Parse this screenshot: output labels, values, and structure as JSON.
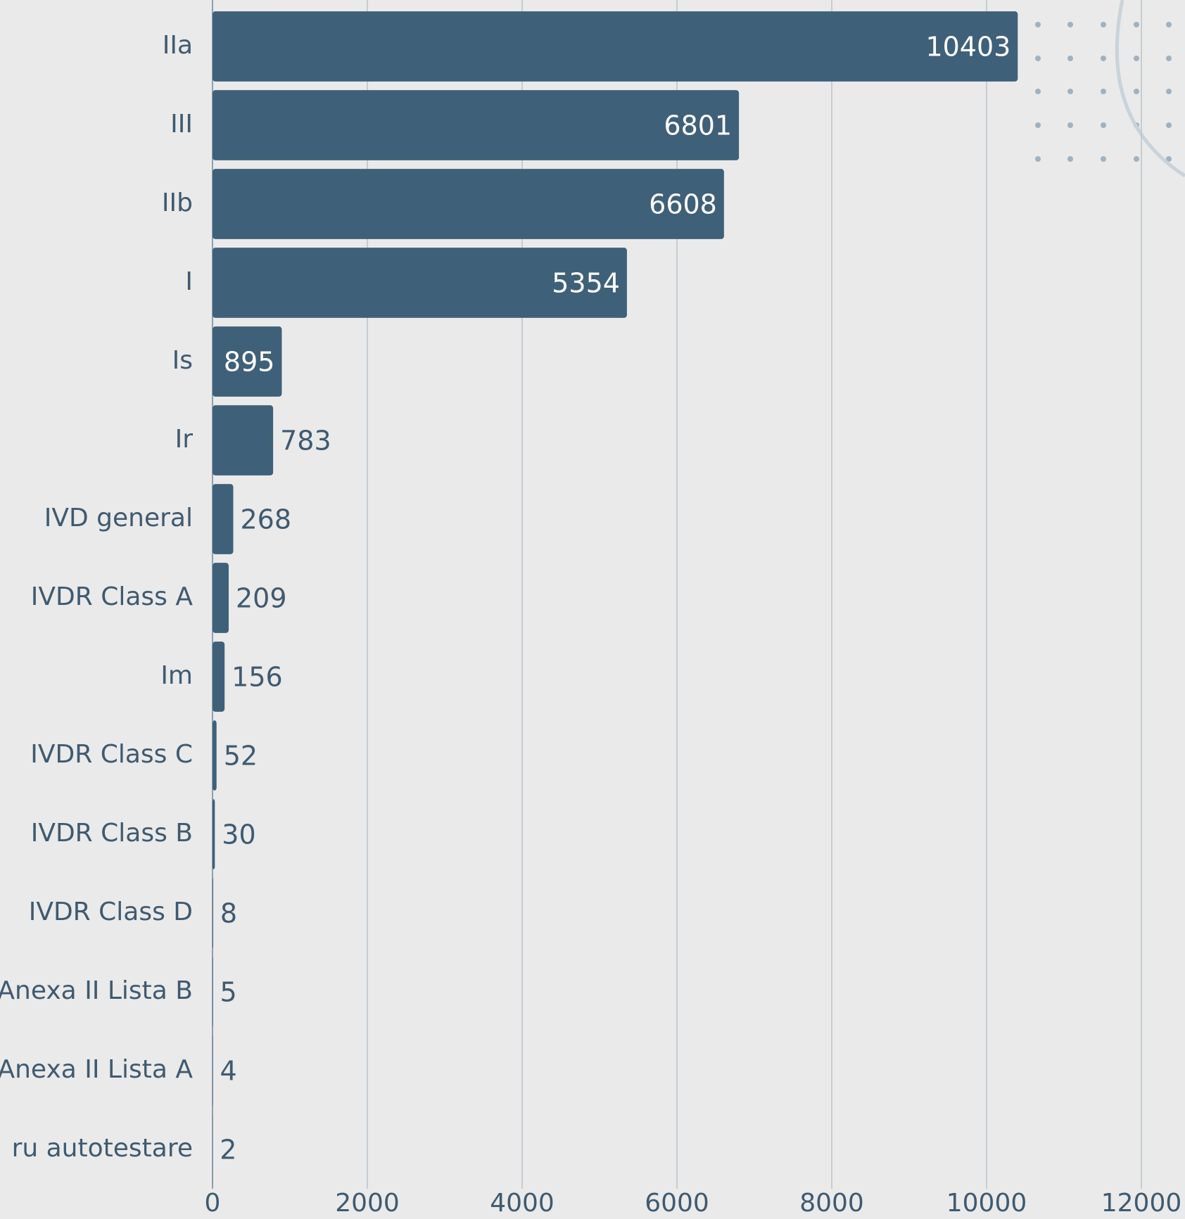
{
  "chart_data": {
    "type": "barh",
    "categories": [
      "IIa",
      "III",
      "IIb",
      "I",
      "Is",
      "Ir",
      "IVD general",
      "IVDR Class A",
      "Im",
      "IVDR Class C",
      "IVDR Class B",
      "IVDR Class D",
      "Anexa II Lista B",
      "Anexa II Lista A",
      "ru autotestare"
    ],
    "values": [
      10403,
      6801,
      6608,
      5354,
      895,
      783,
      268,
      209,
      156,
      52,
      30,
      8,
      5,
      4,
      2
    ],
    "color": "#3f6079",
    "xlim": [
      0,
      12000
    ],
    "xticks": [
      0,
      2000,
      4000,
      6000,
      8000,
      10000,
      12000
    ],
    "grid": true
  }
}
